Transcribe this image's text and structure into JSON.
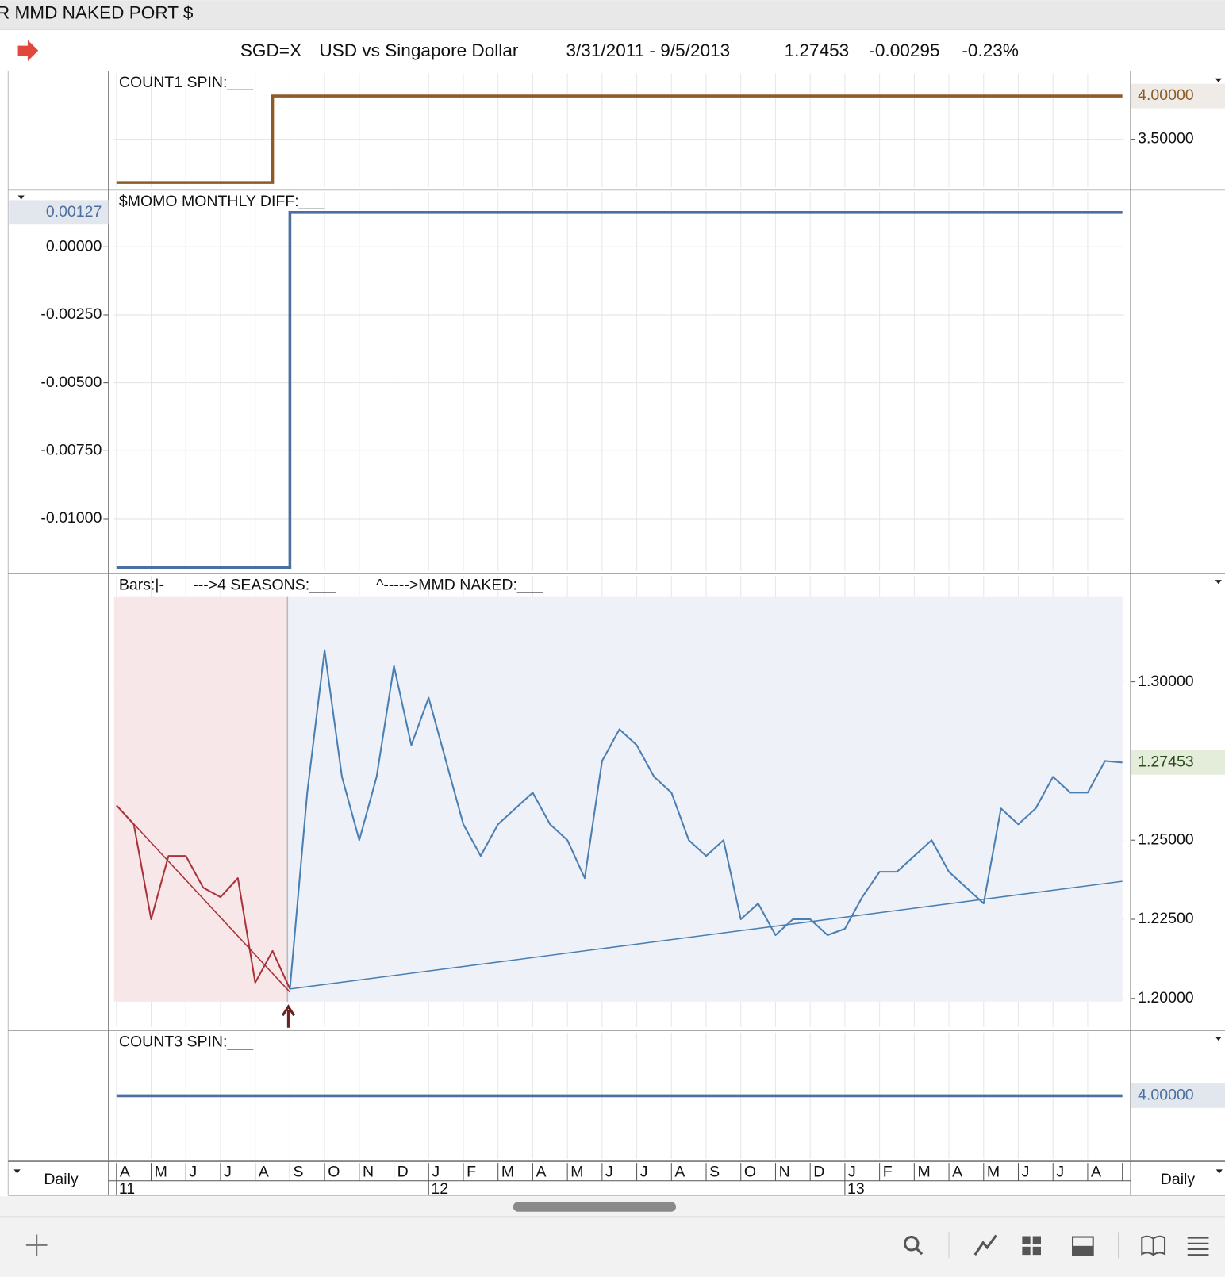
{
  "window_title": "R MMD NAKED PORT $",
  "header": {
    "symbol": "SGD=X",
    "name": "USD vs Singapore Dollar",
    "date_range": "3/31/2011 - 9/5/2013",
    "last": "1.27453",
    "change": "-0.00295",
    "change_pct": "-0.23%"
  },
  "chart_data": [
    {
      "type": "step",
      "title": "COUNT1 SPIN:___",
      "axis_side": "right",
      "ylim": [
        2.925,
        4.28
      ],
      "yticks": [
        {
          "value": 3.5,
          "label": "3.50000"
        }
      ],
      "series": [
        {
          "color": "#8e5a26",
          "last_value_label": "4.00000",
          "values": [
            3,
            3,
            3,
            3,
            3,
            3,
            3,
            3,
            3,
            4,
            4,
            4,
            4,
            4,
            4,
            4,
            4,
            4,
            4,
            4,
            4,
            4,
            4,
            4,
            4,
            4,
            4,
            4,
            4,
            4,
            4,
            4,
            4,
            4,
            4,
            4,
            4,
            4,
            4,
            4,
            4,
            4,
            4,
            4,
            4,
            4,
            4,
            4,
            4,
            4,
            4,
            4,
            4,
            4,
            4,
            4,
            4,
            4,
            4
          ]
        }
      ]
    },
    {
      "type": "step",
      "title": "$MOMO MONTHLY DIFF:___",
      "axis_side": "left",
      "ylim": [
        -0.01198,
        0.00207
      ],
      "yticks": [
        {
          "value": 0,
          "label": "0.00000"
        },
        {
          "value": -0.0025,
          "label": "-0.00250"
        },
        {
          "value": -0.005,
          "label": "-0.00500"
        },
        {
          "value": -0.0075,
          "label": "-0.00750"
        },
        {
          "value": -0.01,
          "label": "-0.01000"
        }
      ],
      "series": [
        {
          "color": "#4a6fa0",
          "last_value_label": "0.00127",
          "values": [
            -0.0118,
            -0.0118,
            -0.0118,
            -0.0118,
            -0.0118,
            -0.0118,
            -0.0118,
            -0.0118,
            -0.0118,
            -0.0118,
            0.00127,
            0.00127,
            0.00127,
            0.00127,
            0.00127,
            0.00127,
            0.00127,
            0.00127,
            0.00127,
            0.00127,
            0.00127,
            0.00127,
            0.00127,
            0.00127,
            0.00127,
            0.00127,
            0.00127,
            0.00127,
            0.00127,
            0.00127,
            0.00127,
            0.00127,
            0.00127,
            0.00127,
            0.00127,
            0.00127,
            0.00127,
            0.00127,
            0.00127,
            0.00127,
            0.00127,
            0.00127,
            0.00127,
            0.00127,
            0.00127,
            0.00127,
            0.00127,
            0.00127,
            0.00127,
            0.00127,
            0.00127,
            0.00127,
            0.00127,
            0.00127,
            0.00127,
            0.00127,
            0.00127,
            0.00127,
            0.00127
          ]
        }
      ]
    },
    {
      "type": "line",
      "legend": [
        "Bars:|-",
        "--->4 SEASONS:___",
        "^----->MMD NAKED:___"
      ],
      "axis_side": "right",
      "ylim": [
        1.1905,
        1.334
      ],
      "yticks": [
        {
          "value": 1.3,
          "label": "1.30000"
        },
        {
          "value": 1.25,
          "label": "1.25000"
        },
        {
          "value": 1.225,
          "label": "1.22500"
        },
        {
          "value": 1.2,
          "label": "1.20000"
        }
      ],
      "series": [
        {
          "color": "#a8333a",
          "fill": "#f8e7e9",
          "values": [
            1.261,
            1.255,
            1.225,
            1.245,
            1.245,
            1.235,
            1.232,
            1.238,
            1.205,
            1.215,
            1.203,
            null,
            null,
            null,
            null,
            null,
            null,
            null,
            null,
            null,
            null,
            null,
            null,
            null,
            null,
            null,
            null,
            null,
            null,
            null,
            null,
            null,
            null,
            null,
            null,
            null,
            null,
            null,
            null,
            null,
            null,
            null,
            null,
            null,
            null,
            null,
            null,
            null,
            null,
            null,
            null,
            null,
            null,
            null,
            null,
            null,
            null,
            null,
            null
          ],
          "trend": [
            1.261,
            1.202
          ]
        },
        {
          "color": "#4a7fb3",
          "fill": "#eef1f7",
          "last_value_label": "1.27453",
          "values": [
            null,
            null,
            null,
            null,
            null,
            null,
            null,
            null,
            null,
            null,
            1.203,
            1.265,
            1.31,
            1.27,
            1.25,
            1.27,
            1.305,
            1.28,
            1.295,
            1.275,
            1.255,
            1.245,
            1.255,
            1.26,
            1.265,
            1.255,
            1.25,
            1.238,
            1.275,
            1.285,
            1.28,
            1.27,
            1.265,
            1.25,
            1.245,
            1.25,
            1.225,
            1.23,
            1.22,
            1.225,
            1.225,
            1.22,
            1.222,
            1.232,
            1.24,
            1.24,
            1.245,
            1.25,
            1.24,
            1.235,
            1.23,
            1.26,
            1.255,
            1.26,
            1.27,
            1.265,
            1.265,
            1.275,
            1.27453
          ],
          "trend": [
            1.203,
            1.237
          ]
        }
      ]
    },
    {
      "type": "step",
      "title": "COUNT3 SPIN:___",
      "axis_side": "right",
      "ylim": [
        3.5,
        4.5
      ],
      "yticks": [],
      "series": [
        {
          "color": "#4a6fa0",
          "last_value_label": "4.00000",
          "values": [
            4,
            4,
            4,
            4,
            4,
            4,
            4,
            4,
            4,
            4,
            4,
            4,
            4,
            4,
            4,
            4,
            4,
            4,
            4,
            4,
            4,
            4,
            4,
            4,
            4,
            4,
            4,
            4,
            4,
            4,
            4,
            4,
            4,
            4,
            4,
            4,
            4,
            4,
            4,
            4,
            4,
            4,
            4,
            4,
            4,
            4,
            4,
            4,
            4,
            4,
            4,
            4,
            4,
            4,
            4,
            4,
            4,
            4,
            4
          ]
        }
      ]
    }
  ],
  "time_axis": {
    "interval": "Daily",
    "months": [
      "A",
      "M",
      "J",
      "J",
      "A",
      "S",
      "O",
      "N",
      "D",
      "J",
      "F",
      "M",
      "A",
      "M",
      "J",
      "J",
      "A",
      "S",
      "O",
      "N",
      "D",
      "J",
      "F",
      "M",
      "A",
      "M",
      "J",
      "J",
      "A"
    ],
    "years": [
      "11",
      "12",
      "13"
    ]
  }
}
